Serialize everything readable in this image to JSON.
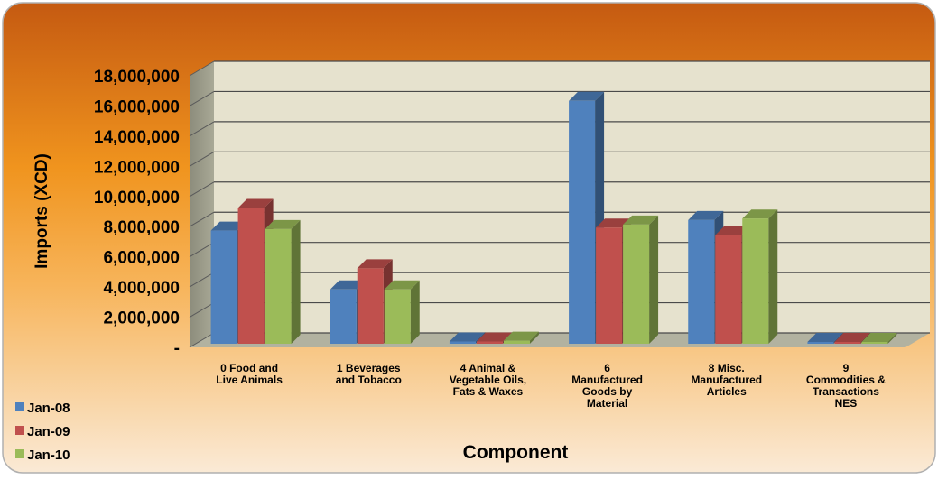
{
  "chart_data": {
    "type": "bar",
    "style": "3d-clustered-column",
    "categories": [
      [
        "0    Food and",
        "Live Animals"
      ],
      [
        "1    Beverages",
        "and Tobacco"
      ],
      [
        "4    Animal &",
        "Vegetable Oils,",
        "Fats & Waxes"
      ],
      [
        "6",
        "Manufactured",
        "Goods by",
        "Material"
      ],
      [
        "8    Misc.",
        "Manufactured",
        "Articles"
      ],
      [
        "9",
        "Commodities &",
        "Transactions",
        "NES"
      ]
    ],
    "series": [
      {
        "name": "Jan-08",
        "color": "#4F81BD",
        "values": [
          7500000,
          3600000,
          150000,
          16100000,
          8200000,
          40000
        ]
      },
      {
        "name": "Jan-09",
        "color": "#C0504D",
        "values": [
          9000000,
          5000000,
          150000,
          7700000,
          7200000,
          40000
        ]
      },
      {
        "name": "Jan-10",
        "color": "#9BBB59",
        "values": [
          7600000,
          3600000,
          200000,
          7900000,
          8300000,
          40000
        ]
      }
    ],
    "ylabel": "Imports (XCD)",
    "xlabel": "Component",
    "ylim": [
      0,
      18000000
    ],
    "y_ticks": [
      "-",
      "2,000,000",
      "4,000,000",
      "6,000,000",
      "8,000,000",
      "10,000,000",
      "12,000,000",
      "14,000,000",
      "16,000,000",
      "18,000,000"
    ],
    "grid": true,
    "legend_position": "bottom-left",
    "background_colors": {
      "panel_top": "#C55A11",
      "panel_bottom": "#F8E3C8",
      "plot_wall": "#E6E2CE",
      "plot_floor": "#B2B2A0"
    }
  }
}
